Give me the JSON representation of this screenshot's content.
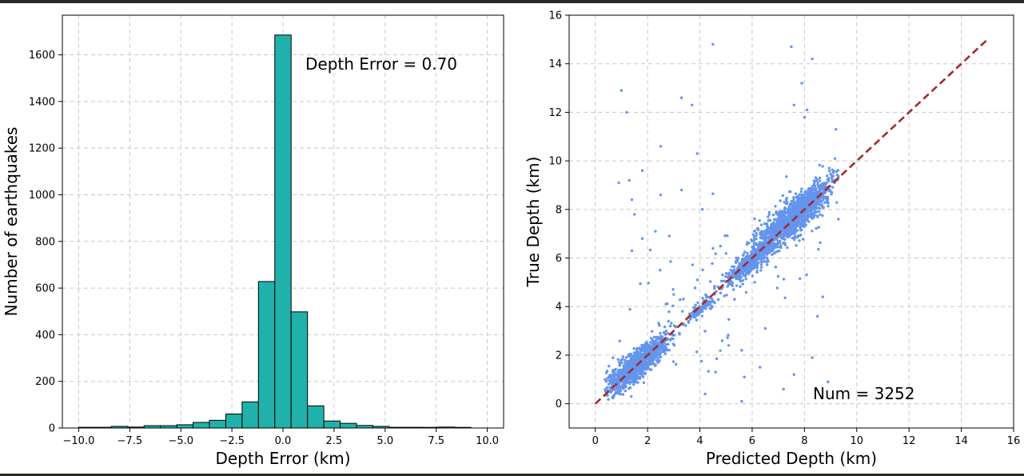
{
  "chart_data": [
    {
      "type": "histogram",
      "xlabel": "Depth Error (km)",
      "ylabel": "Number of earthquakes",
      "annotation": "Depth Error = 0.70",
      "bar_color": "#20b2aa",
      "edge_color": "#000000",
      "xlim": [
        -10.8,
        10.8
      ],
      "ylim": [
        0,
        1770
      ],
      "xticks": [
        -10,
        -7.5,
        -5,
        -2.5,
        0,
        2.5,
        5,
        7.5,
        10
      ],
      "xtick_labels": [
        "−10.0",
        "−7.5",
        "−5.0",
        "−2.5",
        "0.0",
        "2.5",
        "5.0",
        "7.5",
        "10.0"
      ],
      "yticks": [
        0,
        200,
        400,
        600,
        800,
        1000,
        1200,
        1400,
        1600
      ],
      "grid": true,
      "bins": [
        {
          "x0": -10.0,
          "x1": -9.2,
          "count": 3
        },
        {
          "x0": -9.2,
          "x1": -8.4,
          "count": 3
        },
        {
          "x0": -8.4,
          "x1": -7.6,
          "count": 7
        },
        {
          "x0": -7.6,
          "x1": -6.8,
          "count": 4
        },
        {
          "x0": -6.8,
          "x1": -6.0,
          "count": 10
        },
        {
          "x0": -6.0,
          "x1": -5.2,
          "count": 10
        },
        {
          "x0": -5.2,
          "x1": -4.4,
          "count": 14
        },
        {
          "x0": -4.4,
          "x1": -3.6,
          "count": 24
        },
        {
          "x0": -3.6,
          "x1": -2.8,
          "count": 33
        },
        {
          "x0": -2.8,
          "x1": -2.0,
          "count": 60
        },
        {
          "x0": -2.0,
          "x1": -1.2,
          "count": 112
        },
        {
          "x0": -1.2,
          "x1": -0.4,
          "count": 628
        },
        {
          "x0": -0.4,
          "x1": 0.4,
          "count": 1685
        },
        {
          "x0": 0.4,
          "x1": 1.2,
          "count": 498
        },
        {
          "x0": 1.2,
          "x1": 2.0,
          "count": 95
        },
        {
          "x0": 2.0,
          "x1": 2.8,
          "count": 30
        },
        {
          "x0": 2.8,
          "x1": 3.6,
          "count": 20
        },
        {
          "x0": 3.6,
          "x1": 4.4,
          "count": 11
        },
        {
          "x0": 4.4,
          "x1": 5.2,
          "count": 7
        },
        {
          "x0": 5.2,
          "x1": 6.0,
          "count": 3
        },
        {
          "x0": 6.0,
          "x1": 6.8,
          "count": 3
        },
        {
          "x0": 6.8,
          "x1": 7.6,
          "count": 0
        },
        {
          "x0": 7.6,
          "x1": 8.4,
          "count": 4
        },
        {
          "x0": 8.4,
          "x1": 9.2,
          "count": 1
        }
      ]
    },
    {
      "type": "scatter",
      "xlabel": "Predicted Depth (km)",
      "ylabel": "True Depth (km)",
      "annotation": "Num = 3252",
      "point_color": "#6495ed",
      "reference_line": {
        "x": [
          0,
          15
        ],
        "y": [
          0,
          15
        ],
        "color": "#a52a2a",
        "style": "dashed"
      },
      "xlim": [
        -1,
        16
      ],
      "ylim": [
        -1,
        16
      ],
      "xticks": [
        0,
        2,
        4,
        6,
        8,
        10,
        12,
        14,
        16
      ],
      "yticks": [
        0,
        2,
        4,
        6,
        8,
        10,
        12,
        14,
        16
      ],
      "grid": true,
      "clusters": [
        {
          "cx": 1.6,
          "cy": 1.6,
          "spread": 0.55,
          "n": 1200
        },
        {
          "cx": 4.0,
          "cy": 3.9,
          "spread": 0.25,
          "n": 120
        },
        {
          "cx": 5.9,
          "cy": 5.8,
          "spread": 0.45,
          "n": 450
        },
        {
          "cx": 7.6,
          "cy": 7.7,
          "spread": 0.7,
          "n": 1350
        },
        {
          "cx": 5.0,
          "cy": 5.0,
          "spread": 3.2,
          "n": 132
        }
      ],
      "outliers": [
        [
          1.0,
          12.9
        ],
        [
          1.2,
          12.0
        ],
        [
          0.9,
          9.1
        ],
        [
          1.3,
          9.2
        ],
        [
          1.8,
          9.6
        ],
        [
          1.4,
          8.4
        ],
        [
          3.3,
          12.6
        ],
        [
          3.7,
          12.3
        ],
        [
          4.5,
          14.8
        ],
        [
          7.5,
          14.7
        ],
        [
          8.3,
          14.2
        ],
        [
          7.9,
          13.2
        ],
        [
          7.6,
          12.3
        ],
        [
          8.1,
          12.1
        ],
        [
          8.0,
          11.8
        ],
        [
          9.2,
          11.3
        ],
        [
          2.5,
          10.6
        ],
        [
          3.9,
          10.3
        ],
        [
          3.3,
          8.8
        ],
        [
          2.5,
          8.6
        ],
        [
          1.5,
          7.8
        ],
        [
          1.4,
          6.3
        ],
        [
          2.3,
          7.1
        ],
        [
          1.8,
          6.8
        ],
        [
          8.7,
          4.4
        ],
        [
          8.5,
          3.6
        ],
        [
          9.3,
          7.6
        ],
        [
          8.9,
          0.9
        ],
        [
          7.2,
          0.6
        ],
        [
          5.6,
          0.1
        ],
        [
          5.7,
          1.1
        ],
        [
          4.6,
          1.3
        ],
        [
          4.2,
          0.4
        ],
        [
          6.3,
          1.5
        ],
        [
          7.6,
          1.2
        ],
        [
          8.3,
          1.9
        ],
        [
          5.1,
          2.4
        ],
        [
          5.6,
          2.2
        ],
        [
          6.5,
          3.1
        ],
        [
          3.0,
          4.5
        ],
        [
          2.7,
          4.1
        ],
        [
          4.5,
          6.4
        ]
      ]
    }
  ]
}
